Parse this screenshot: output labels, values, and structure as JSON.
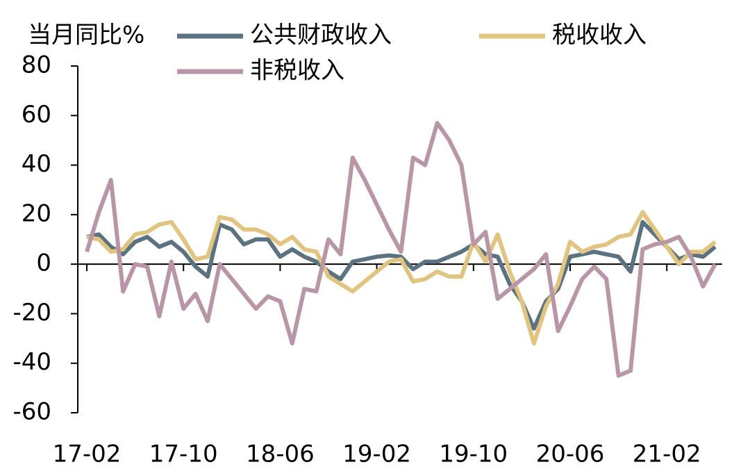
{
  "chart_data": {
    "type": "line",
    "y_label": "当月同比%",
    "categories": [
      "17-02",
      null,
      null,
      null,
      null,
      null,
      null,
      null,
      "17-10",
      null,
      null,
      null,
      null,
      null,
      null,
      null,
      "18-06",
      null,
      null,
      null,
      null,
      null,
      null,
      null,
      "19-02",
      null,
      null,
      null,
      null,
      null,
      null,
      null,
      "19-10",
      null,
      null,
      null,
      null,
      null,
      null,
      null,
      "20-06",
      null,
      null,
      null,
      null,
      null,
      null,
      null,
      "21-02",
      null,
      null,
      null,
      null
    ],
    "series": [
      {
        "name": "公共财政收入",
        "color": "#5b7381",
        "values": [
          11,
          12,
          7,
          4,
          9,
          11,
          7,
          9,
          5,
          -1,
          -5,
          16,
          14,
          8,
          10,
          10,
          3,
          6,
          3,
          1,
          -3,
          -6,
          1,
          2,
          3,
          3.5,
          3,
          -2,
          1,
          1,
          3,
          5,
          8,
          4,
          3,
          -8,
          -15,
          -26,
          -15,
          -10,
          3,
          4,
          5,
          4,
          3,
          -3,
          17,
          12,
          7,
          2,
          4,
          3,
          7
        ]
      },
      {
        "name": "税收收入",
        "color": "#e0c47f",
        "values": [
          11,
          10,
          5,
          6,
          12,
          13,
          16,
          17,
          10,
          2,
          3,
          19,
          18,
          14,
          14,
          12,
          8,
          11,
          6,
          5,
          -5,
          -8,
          -11,
          -7,
          -3,
          1,
          2,
          -7,
          -6,
          -3,
          -5,
          -5,
          9,
          1,
          12,
          -3,
          -15,
          -32,
          -17,
          -8,
          9,
          5,
          7,
          8,
          11,
          12,
          21,
          14,
          7,
          0,
          5,
          5,
          9
        ]
      },
      {
        "name": "非税收入",
        "color": "#b995a8",
        "values": [
          5,
          21,
          34,
          -11,
          0,
          -1,
          -21,
          1,
          -18,
          -12,
          -23,
          0,
          -6,
          -12,
          -18,
          -13,
          -15,
          -32,
          -10,
          -11,
          10,
          4,
          43,
          34,
          24,
          14,
          5,
          43,
          40,
          57,
          50,
          40,
          8,
          13,
          -14,
          -10,
          -6,
          -2,
          4,
          -27,
          -17,
          -6,
          -1,
          -6,
          -45,
          -43,
          6,
          8,
          9,
          11,
          3,
          -9,
          0
        ]
      }
    ],
    "ylim": [
      -60,
      80
    ],
    "yticks": [
      -60,
      -40,
      -20,
      0,
      20,
      40,
      60,
      80
    ]
  }
}
